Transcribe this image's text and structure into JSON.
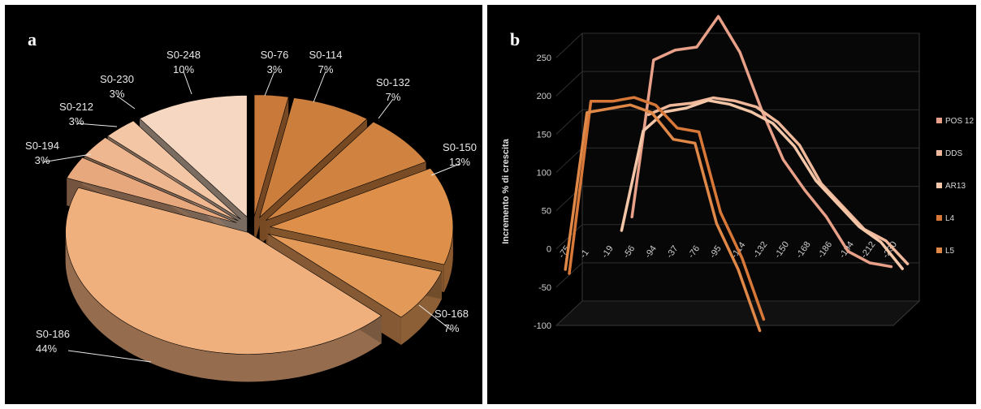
{
  "panels": {
    "a": "a",
    "b": "b"
  },
  "chart_data": [
    {
      "type": "pie",
      "labels": [
        "S0-76",
        "S0-114",
        "S0-132",
        "S0-150",
        "S0-168",
        "S0-186",
        "S0-194",
        "S0-212",
        "S0-230",
        "S0-248"
      ],
      "values": [
        3,
        7,
        7,
        13,
        7,
        44,
        3,
        3,
        3,
        10
      ],
      "value_labels": [
        "3%",
        "7%",
        "7%",
        "13%",
        "7%",
        "44%",
        "3%",
        "3%",
        "3%",
        "10%"
      ],
      "colors": [
        "#c97a3a",
        "#cc7e3c",
        "#d08340",
        "#de904a",
        "#e39a58",
        "#f0b07e",
        "#e8a87e",
        "#efb78f",
        "#f3c7a6",
        "#f6d7c2"
      ],
      "style": "3D exploded"
    },
    {
      "type": "line",
      "x": [
        "-75",
        "-1",
        "-19",
        "-56",
        "-94",
        "-37",
        "-76",
        "-95",
        "-114",
        "-132",
        "-150",
        "-168",
        "-186",
        "-194",
        "-212",
        "-230"
      ],
      "ylabel": "Incremento % di crescita",
      "ylim": [
        -100,
        250
      ],
      "yticks": [
        "250",
        "200",
        "150",
        "100",
        "50",
        "0",
        "-50",
        "-100"
      ],
      "legend_position": "right",
      "series": [
        {
          "name": "POS 12",
          "color": "#e8a088",
          "values": [
            null,
            null,
            10,
            215,
            228,
            232,
            272,
            225,
            150,
            85,
            45,
            10,
            -35,
            -50,
            -55,
            null
          ]
        },
        {
          "name": "DDS",
          "color": "#f0b89a",
          "values": [
            null,
            null,
            null,
            150,
            162,
            165,
            172,
            168,
            160,
            140,
            110,
            60,
            30,
            0,
            -15,
            -45
          ]
        },
        {
          "name": "AR13",
          "color": "#f4c6a8",
          "values": [
            null,
            null,
            5,
            135,
            160,
            165,
            175,
            170,
            160,
            145,
            115,
            70,
            40,
            10,
            -10,
            -45
          ]
        },
        {
          "name": "L4",
          "color": "#d87838",
          "values": [
            -40,
            185,
            185,
            190,
            180,
            150,
            145,
            40,
            -20,
            -100,
            null,
            null,
            null,
            null,
            null,
            null
          ]
        },
        {
          "name": "L5",
          "color": "#e08848",
          "values": [
            -30,
            175,
            180,
            185,
            175,
            140,
            135,
            30,
            -30,
            -110,
            null,
            null,
            null,
            null,
            null,
            null
          ]
        }
      ]
    }
  ]
}
